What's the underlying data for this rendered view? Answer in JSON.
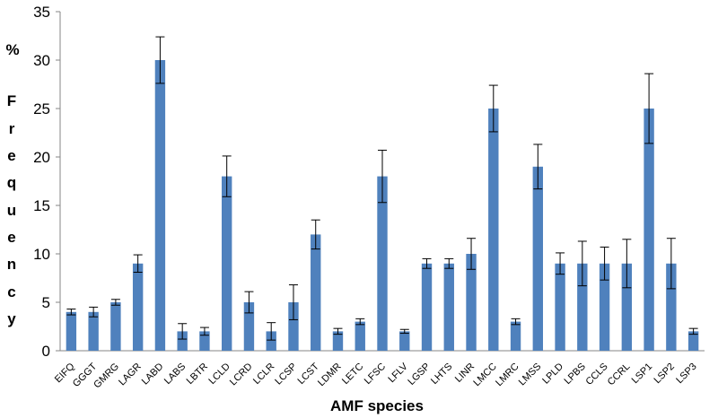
{
  "chart_data": {
    "type": "bar",
    "title": "",
    "xlabel": "AMF species",
    "ylabel": "% Frequency",
    "ylabel_chars": [
      "%",
      "F",
      "r",
      "e",
      "q",
      "u",
      "e",
      "n",
      "c",
      "y"
    ],
    "ylim": [
      0,
      35
    ],
    "yticks": [
      0,
      5,
      10,
      15,
      20,
      25,
      30,
      35
    ],
    "grid": false,
    "legend": "none",
    "bar_color": "#4F81BD",
    "categories": [
      "EIFQ",
      "GGGT",
      "GMRG",
      "LAGR",
      "LABD",
      "LABS",
      "LBTR",
      "LCLD",
      "LCRD",
      "LCLR",
      "LCSP",
      "LCST",
      "LDMR",
      "LETC",
      "LFSC",
      "LFLV",
      "LGSP",
      "LHTS",
      "LINR",
      "LMCC",
      "LMRC",
      "LMSS",
      "LPLD",
      "LPBS",
      "CCLS",
      "CCRL",
      "LSP1",
      "LSP2",
      "LSP3"
    ],
    "values": [
      4,
      4,
      5,
      9,
      30,
      2,
      2,
      18,
      5,
      2,
      5,
      12,
      2,
      3,
      18,
      2,
      9,
      9,
      10,
      25,
      3,
      19,
      9,
      9,
      9,
      9,
      25,
      9,
      2
    ],
    "errors": [
      0.3,
      0.5,
      0.3,
      0.9,
      2.4,
      0.8,
      0.4,
      2.1,
      1.1,
      0.9,
      1.8,
      1.5,
      0.3,
      0.3,
      2.7,
      0.2,
      0.5,
      0.5,
      1.6,
      2.4,
      0.3,
      2.3,
      1.1,
      2.3,
      1.7,
      2.5,
      3.6,
      2.6,
      0.3
    ]
  }
}
